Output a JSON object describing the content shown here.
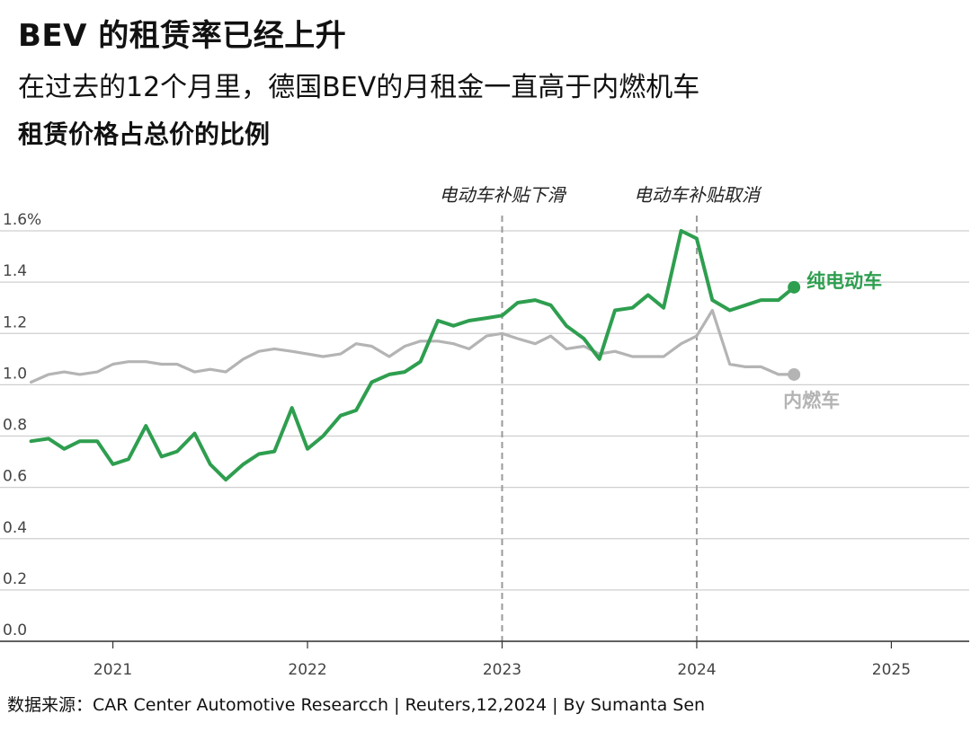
{
  "header": {
    "title": "BEV 的租赁率已经上升",
    "subtitle": "在过去的12个月里，德国BEV的月租金一直高于内燃机车",
    "chart_label": "租赁价格占总价的比例"
  },
  "source": "数据来源：CAR Center Automotive Researcch | Reuters,12,2024 | By Sumanta Sen",
  "colors": {
    "bev": "#2e9e4f",
    "ice": "#b4b4b4",
    "grid": "#cfcfcf",
    "axis": "#333333"
  },
  "chart_data": {
    "type": "line",
    "ylim": [
      0,
      1.6
    ],
    "xlim": [
      2020.42,
      2025.4
    ],
    "y_ticks": [
      "0.0",
      "0.2",
      "0.4",
      "0.6",
      "0.8",
      "1.0",
      "1.2",
      "1.4",
      "1.6%"
    ],
    "x_ticks": [
      "2021",
      "2022",
      "2023",
      "2024",
      "2025"
    ],
    "annotations": [
      {
        "text": "电动车补贴下滑",
        "x": 2023.0
      },
      {
        "text": "电动车补贴取消",
        "x": 2024.0
      }
    ],
    "x": [
      2020.58,
      2020.67,
      2020.75,
      2020.83,
      2020.92,
      2021.0,
      2021.08,
      2021.17,
      2021.25,
      2021.33,
      2021.42,
      2021.5,
      2021.58,
      2021.67,
      2021.75,
      2021.83,
      2021.92,
      2022.0,
      2022.08,
      2022.17,
      2022.25,
      2022.33,
      2022.42,
      2022.5,
      2022.58,
      2022.67,
      2022.75,
      2022.83,
      2022.92,
      2023.0,
      2023.08,
      2023.17,
      2023.25,
      2023.33,
      2023.42,
      2023.5,
      2023.58,
      2023.67,
      2023.75,
      2023.83,
      2023.92,
      2024.0,
      2024.08,
      2024.17,
      2024.25,
      2024.33,
      2024.42,
      2024.5
    ],
    "series": [
      {
        "name": "纯电动车",
        "key": "bev",
        "values": [
          0.78,
          0.79,
          0.75,
          0.78,
          0.78,
          0.69,
          0.71,
          0.84,
          0.72,
          0.74,
          0.81,
          0.69,
          0.63,
          0.69,
          0.73,
          0.74,
          0.91,
          0.75,
          0.8,
          0.88,
          0.9,
          1.01,
          1.04,
          1.05,
          1.09,
          1.25,
          1.23,
          1.25,
          1.26,
          1.27,
          1.32,
          1.33,
          1.31,
          1.23,
          1.18,
          1.1,
          1.29,
          1.3,
          1.35,
          1.3,
          1.6,
          1.57,
          1.33,
          1.29,
          1.31,
          1.33,
          1.33,
          1.38
        ]
      },
      {
        "name": "内燃车",
        "key": "ice",
        "values": [
          1.01,
          1.04,
          1.05,
          1.04,
          1.05,
          1.08,
          1.09,
          1.09,
          1.08,
          1.08,
          1.05,
          1.06,
          1.05,
          1.1,
          1.13,
          1.14,
          1.13,
          1.12,
          1.11,
          1.12,
          1.16,
          1.15,
          1.11,
          1.15,
          1.17,
          1.17,
          1.16,
          1.14,
          1.19,
          1.2,
          1.18,
          1.16,
          1.19,
          1.14,
          1.15,
          1.12,
          1.13,
          1.11,
          1.11,
          1.11,
          1.16,
          1.19,
          1.29,
          1.08,
          1.07,
          1.07,
          1.04,
          1.04
        ]
      }
    ]
  }
}
